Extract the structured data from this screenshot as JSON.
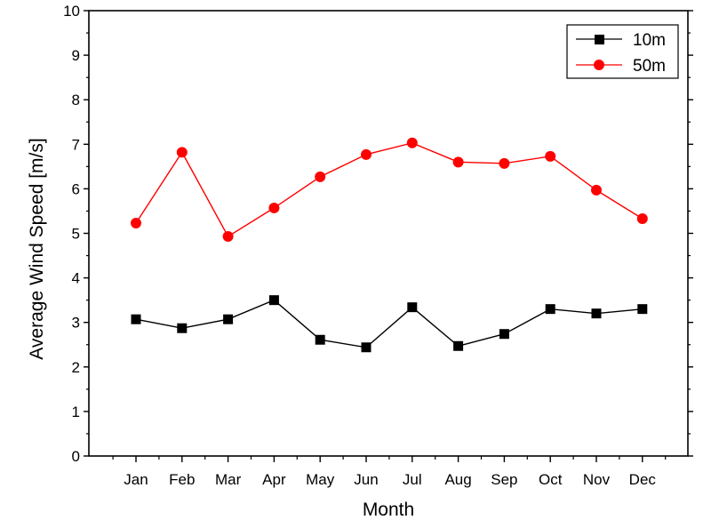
{
  "chart_data": {
    "type": "line",
    "title": "",
    "xlabel": "Month",
    "ylabel": "Average Wind Speed [m/s]",
    "categories": [
      "Jan",
      "Feb",
      "Mar",
      "Apr",
      "May",
      "Jun",
      "Jul",
      "Aug",
      "Sep",
      "Oct",
      "Nov",
      "Dec"
    ],
    "ylim": [
      0,
      10
    ],
    "yticks": [
      "0",
      "1",
      "2",
      "3",
      "4",
      "5",
      "6",
      "7",
      "8",
      "9",
      "10"
    ],
    "grid": false,
    "legend_position": "top-right",
    "series": [
      {
        "name": "10m",
        "color": "#000000",
        "marker": "square",
        "values": [
          3.07,
          2.87,
          3.07,
          3.5,
          2.61,
          2.44,
          3.34,
          2.47,
          2.74,
          3.3,
          3.2,
          3.3
        ]
      },
      {
        "name": "50m",
        "color": "#ff0000",
        "marker": "circle",
        "values": [
          5.23,
          6.82,
          4.93,
          5.57,
          6.27,
          6.77,
          7.03,
          6.6,
          6.57,
          6.73,
          5.97,
          5.33
        ]
      }
    ]
  }
}
